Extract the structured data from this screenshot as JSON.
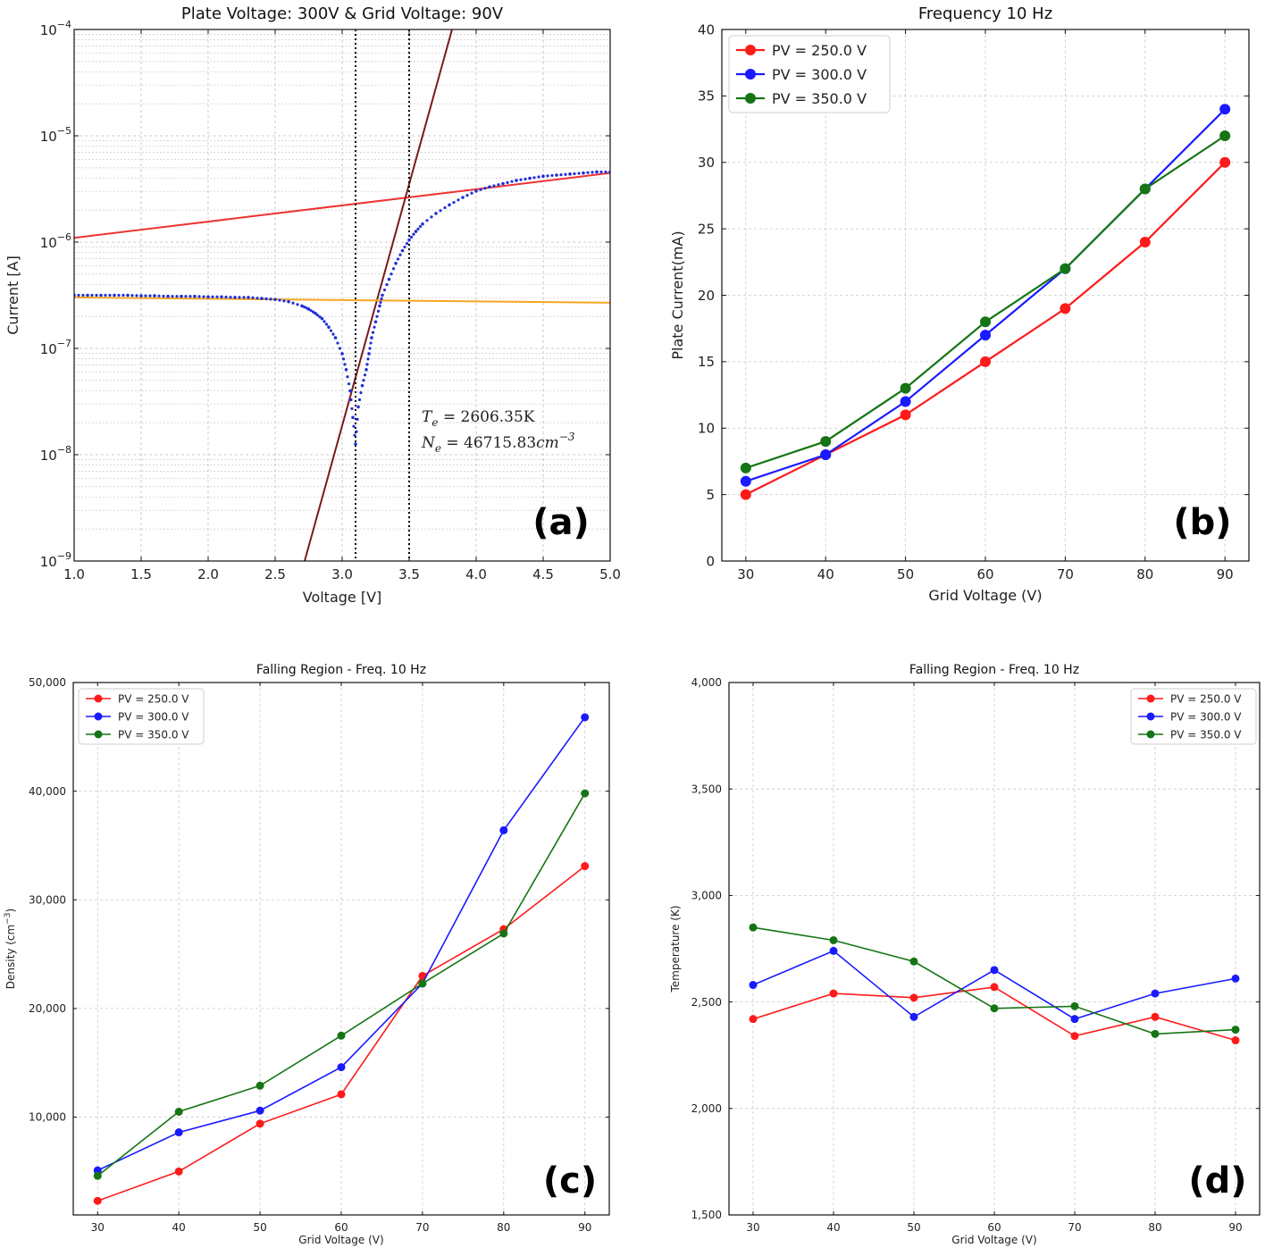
{
  "chart_data": [
    {
      "panel": "(a)",
      "type": "scatter",
      "title": "Plate Voltage: 300V & Grid Voltage: 90V",
      "xlabel": "Voltage [V]",
      "ylabel": "Current [A]",
      "xlim": [
        1.0,
        5.0
      ],
      "ylim_log10": [
        -9,
        -4
      ],
      "yscale": "log",
      "xticks": [
        "1.0",
        "1.5",
        "2.0",
        "2.5",
        "3.0",
        "3.5",
        "4.0",
        "4.5",
        "5.0"
      ],
      "ytick_labels": [
        "10",
        "10",
        "10",
        "10",
        "10",
        "10"
      ],
      "ytick_exps": [
        "−9",
        "−8",
        "−7",
        "−6",
        "−5",
        "−4"
      ],
      "vlines": [
        3.1,
        3.5
      ],
      "fit_lines": [
        {
          "name": "electron saturation fit",
          "color": "#ee3333",
          "x": [
            1.0,
            5.0
          ],
          "log10_y": [
            -5.96,
            -5.35
          ]
        },
        {
          "name": "transition fit",
          "color": "#7a1a1a",
          "x": [
            2.72,
            3.82
          ],
          "log10_y": [
            -9.0,
            -4.0
          ]
        },
        {
          "name": "ion saturation fit",
          "color": "#f5a623",
          "x": [
            1.0,
            5.0
          ],
          "log10_y": [
            -6.52,
            -6.57
          ]
        }
      ],
      "measured": {
        "name": "measured I-V",
        "color": "#1f2fd6",
        "x": [
          1.0,
          1.1,
          1.2,
          1.3,
          1.4,
          1.5,
          1.6,
          1.7,
          1.8,
          1.9,
          2.0,
          2.1,
          2.2,
          2.3,
          2.4,
          2.5,
          2.6,
          2.7,
          2.75,
          2.8,
          2.85,
          2.9,
          2.95,
          3.0,
          3.03,
          3.06,
          3.08,
          3.1,
          3.12,
          3.15,
          3.18,
          3.2,
          3.22,
          3.25,
          3.28,
          3.3,
          3.35,
          3.4,
          3.45,
          3.5,
          3.55,
          3.6,
          3.7,
          3.8,
          3.9,
          4.0,
          4.1,
          4.2,
          4.3,
          4.4,
          4.5,
          4.6,
          4.7,
          4.8,
          4.9,
          5.0
        ],
        "log10_y": [
          -6.5,
          -6.5,
          -6.5,
          -6.5,
          -6.5,
          -6.505,
          -6.505,
          -6.51,
          -6.51,
          -6.51,
          -6.515,
          -6.515,
          -6.52,
          -6.52,
          -6.53,
          -6.54,
          -6.56,
          -6.6,
          -6.63,
          -6.67,
          -6.72,
          -6.8,
          -6.9,
          -7.05,
          -7.2,
          -7.4,
          -7.65,
          -7.9,
          -7.55,
          -7.35,
          -7.2,
          -7.05,
          -6.9,
          -6.75,
          -6.6,
          -6.5,
          -6.35,
          -6.2,
          -6.08,
          -5.98,
          -5.9,
          -5.83,
          -5.73,
          -5.65,
          -5.58,
          -5.52,
          -5.48,
          -5.45,
          -5.42,
          -5.4,
          -5.38,
          -5.37,
          -5.36,
          -5.35,
          -5.34,
          -5.34
        ]
      },
      "annotations": [
        "T_e = 2606.35K",
        "N_e = 46715.83cm^-3"
      ]
    },
    {
      "panel": "(b)",
      "type": "line",
      "title": "Frequency 10 Hz",
      "xlabel": "Grid Voltage (V)",
      "ylabel": "Plate Current(mA)",
      "xlim": [
        27,
        93
      ],
      "ylim": [
        0,
        40
      ],
      "x": [
        30,
        40,
        50,
        60,
        70,
        80,
        90
      ],
      "xticks": [
        "30",
        "40",
        "50",
        "60",
        "70",
        "80",
        "90"
      ],
      "yticks": [
        "0",
        "5",
        "10",
        "15",
        "20",
        "25",
        "30",
        "35",
        "40"
      ],
      "legend_position": "top-left",
      "series": [
        {
          "name": "PV = 250.0 V",
          "color": "#ff1a1a",
          "values": [
            5,
            8,
            11,
            15,
            19,
            24,
            30
          ]
        },
        {
          "name": "PV = 300.0 V",
          "color": "#1a1aff",
          "values": [
            6,
            8,
            12,
            17,
            22,
            28,
            34
          ]
        },
        {
          "name": "PV = 350.0 V",
          "color": "#157515",
          "values": [
            7,
            9,
            13,
            18,
            22,
            28,
            32
          ]
        }
      ]
    },
    {
      "panel": "(c)",
      "type": "line",
      "title": "Falling Region - Freq. 10 Hz",
      "xlabel": "Grid Voltage (V)",
      "ylabel": "Density (cm",
      "ylabel_sup": "−3",
      "xlim": [
        27,
        93
      ],
      "ylim": [
        1000,
        50000
      ],
      "x": [
        30,
        40,
        50,
        60,
        70,
        80,
        90
      ],
      "xticks": [
        "30",
        "40",
        "50",
        "60",
        "70",
        "80",
        "90"
      ],
      "yticks": [
        10000,
        20000,
        30000,
        40000,
        50000
      ],
      "yticklabels": [
        "10,000",
        "20,000",
        "30,000",
        "40,000",
        "50,000"
      ],
      "legend_position": "top-left",
      "series": [
        {
          "name": "PV = 250.0 V",
          "color": "#ff1a1a",
          "values": [
            2300,
            5000,
            9400,
            12100,
            23000,
            27300,
            33100
          ]
        },
        {
          "name": "PV = 300.0 V",
          "color": "#1a1aff",
          "values": [
            5100,
            8600,
            10600,
            14600,
            22300,
            36400,
            46800
          ]
        },
        {
          "name": "PV = 350.0 V",
          "color": "#157515",
          "values": [
            4600,
            10500,
            12900,
            17500,
            22300,
            26900,
            39800
          ]
        }
      ]
    },
    {
      "panel": "(d)",
      "type": "line",
      "title": "Falling Region - Freq. 10 Hz",
      "xlabel": "Grid Voltage (V)",
      "ylabel": "Temperature (K)",
      "xlim": [
        27,
        93
      ],
      "ylim": [
        1500,
        4000
      ],
      "x": [
        30,
        40,
        50,
        60,
        70,
        80,
        90
      ],
      "xticks": [
        "30",
        "40",
        "50",
        "60",
        "70",
        "80",
        "90"
      ],
      "yticks": [
        1500,
        2000,
        2500,
        3000,
        3500,
        4000
      ],
      "yticklabels": [
        "1,500",
        "2,000",
        "2,500",
        "3,000",
        "3,500",
        "4,000"
      ],
      "legend_position": "top-right",
      "series": [
        {
          "name": "PV = 250.0 V",
          "color": "#ff1a1a",
          "values": [
            2420,
            2540,
            2520,
            2570,
            2340,
            2430,
            2320
          ]
        },
        {
          "name": "PV = 300.0 V",
          "color": "#1a1aff",
          "values": [
            2580,
            2740,
            2430,
            2650,
            2420,
            2540,
            2610
          ]
        },
        {
          "name": "PV = 350.0 V",
          "color": "#157515",
          "values": [
            2850,
            2790,
            2690,
            2470,
            2480,
            2350,
            2370
          ]
        }
      ]
    }
  ]
}
